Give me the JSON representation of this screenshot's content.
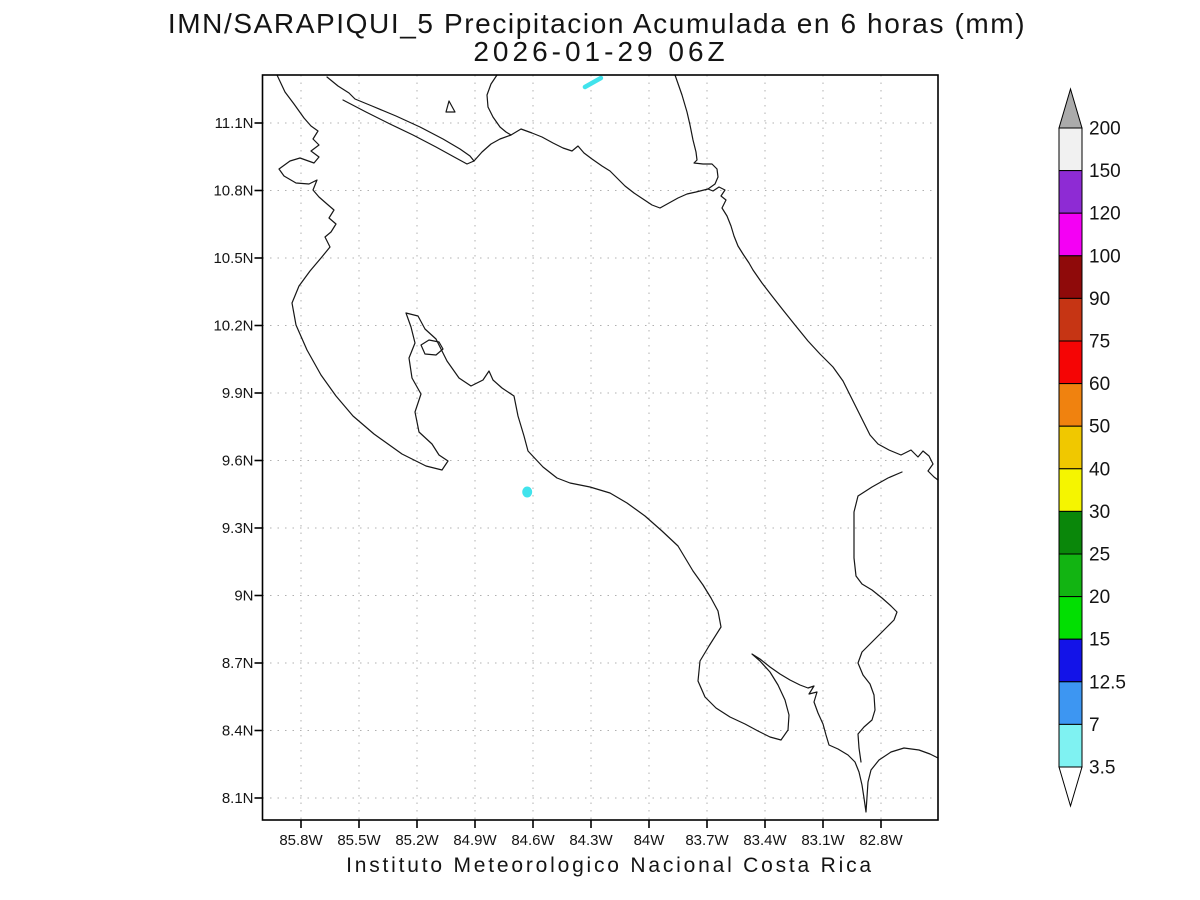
{
  "title": {
    "line1": "IMN/SARAPIQUI_5 Precipitacion Acumulada en 6 horas (mm)",
    "line2": "2026-01-29 06Z"
  },
  "caption": "Instituto Meteorologico Nacional Costa Rica",
  "axes": {
    "x_tick_labels": [
      "85.8W",
      "85.5W",
      "85.2W",
      "84.9W",
      "84.6W",
      "84.3W",
      "84W",
      "83.7W",
      "83.4W",
      "83.1W",
      "82.8W"
    ],
    "y_tick_labels": [
      "11.1N",
      "10.8N",
      "10.5N",
      "10.2N",
      "9.9N",
      "9.6N",
      "9.3N",
      "9N",
      "8.7N",
      "8.4N",
      "8.1N"
    ],
    "grid_style": "dotted",
    "grid_color": "#b0b0b0"
  },
  "colorbar": {
    "tick_labels_top_to_bottom": [
      "200",
      "150",
      "120",
      "100",
      "90",
      "75",
      "60",
      "50",
      "40",
      "30",
      "25",
      "20",
      "15",
      "12.5",
      "7",
      "3.5"
    ],
    "box_colors_top_to_bottom": [
      "#F1F1F1",
      "#8E2BD4",
      "#F400F4",
      "#8F0A0A",
      "#C63514",
      "#F50505",
      "#F0820F",
      "#F0C800",
      "#F5F500",
      "#0A870A",
      "#12B412",
      "#02DF02",
      "#1313E8",
      "#3D96F2",
      "#7FF2F2"
    ],
    "arrow_top_color": "#ABABAB",
    "arrow_bottom_color": "#FFFFFF",
    "outline_color": "#000000"
  },
  "chart_data": {
    "type": "map",
    "title": "IMN/SARAPIQUI_5 Precipitacion Acumulada en 6 horas (mm)",
    "subtitle": "2026-01-29 06Z",
    "region": "Costa Rica and vicinity",
    "units": "mm",
    "grid": "dotted lat/lon graticule",
    "legend_position": "right",
    "x_axis": {
      "tick_values_deg_w": [
        85.8,
        85.5,
        85.2,
        84.9,
        84.6,
        84.3,
        84.0,
        83.7,
        83.4,
        83.1,
        82.8
      ],
      "range_deg_w": [
        86.0,
        82.5
      ]
    },
    "y_axis": {
      "tick_values_deg_n": [
        11.1,
        10.8,
        10.5,
        10.2,
        9.9,
        9.6,
        9.3,
        9.0,
        8.7,
        8.4,
        8.1
      ],
      "range_deg_n": [
        8.0,
        11.31
      ]
    },
    "colorbar_levels_mm": [
      3.5,
      7,
      12.5,
      15,
      20,
      25,
      30,
      40,
      50,
      60,
      75,
      90,
      100,
      120,
      150,
      200
    ],
    "precipitation_features": [
      {
        "type": "spot",
        "lon_w": 84.63,
        "lat_n": 9.46,
        "level_mm": "3.5-7",
        "color": "#41E3EC"
      },
      {
        "type": "streak",
        "lon_w": 84.29,
        "lat_n": 11.28,
        "level_mm": "3.5-7",
        "color": "#41E3EC"
      }
    ]
  }
}
